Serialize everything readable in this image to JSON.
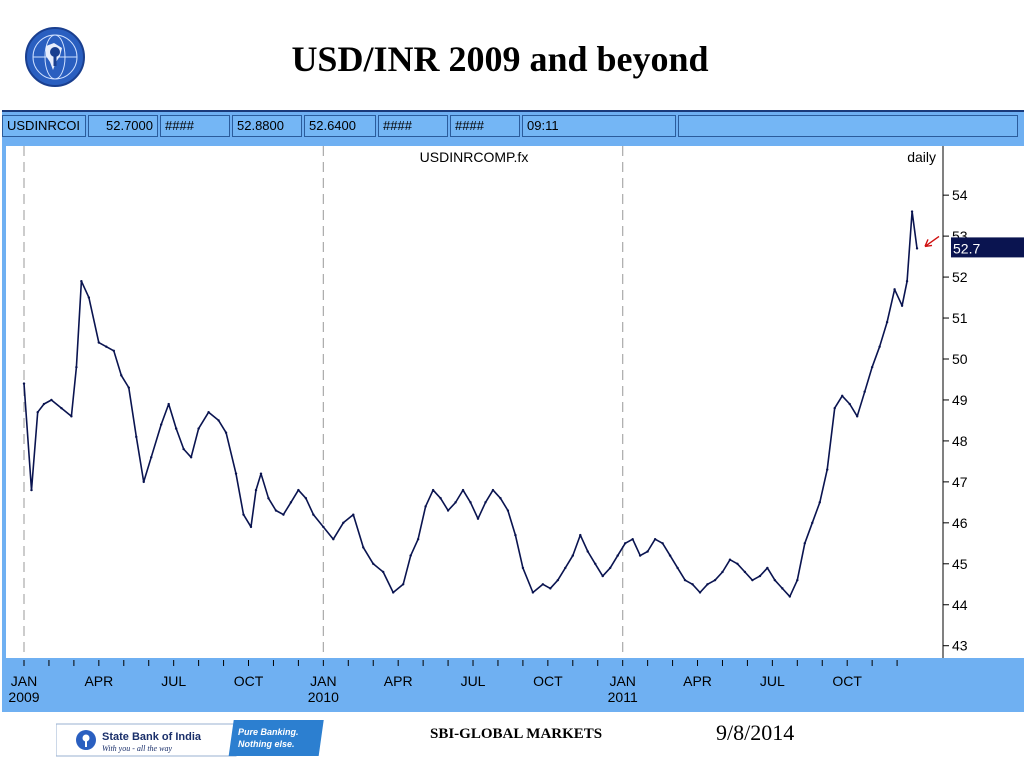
{
  "slide": {
    "title": "USD/INR 2009 and beyond",
    "footer_center": "SBI-GLOBAL MARKETS",
    "footer_date": "9/8/2014"
  },
  "quote_bar": {
    "cells": [
      "USDINRCOI",
      "52.7000",
      "####",
      "52.8800",
      "52.6400",
      "####",
      "####",
      "09:11",
      ""
    ]
  },
  "banner": {
    "bank_name": "State Bank of India",
    "tagline": "With you - all the way",
    "slogan_line1": "Pure Banking.",
    "slogan_line2": "Nothing else."
  },
  "colors": {
    "frame": "#6fb0f2",
    "series": "#0a1450",
    "last_price_box": "#0a1450",
    "arrow": "#d01010"
  },
  "chart_data": {
    "type": "line",
    "title": "USDINRCOMP.fx",
    "frequency_label": "daily",
    "last_value_label": "52.7",
    "ylim": [
      42.7,
      55.2
    ],
    "yticks": [
      43,
      44,
      45,
      46,
      47,
      48,
      49,
      50,
      51,
      52,
      53,
      54
    ],
    "xlim": [
      0,
      36.6
    ],
    "x_ticks": [
      {
        "pos": 0,
        "label": "JAN",
        "year": "2009"
      },
      {
        "pos": 3,
        "label": "APR",
        "year": ""
      },
      {
        "pos": 6,
        "label": "JUL",
        "year": ""
      },
      {
        "pos": 9,
        "label": "OCT",
        "year": ""
      },
      {
        "pos": 12,
        "label": "JAN",
        "year": "2010"
      },
      {
        "pos": 15,
        "label": "APR",
        "year": ""
      },
      {
        "pos": 18,
        "label": "JUL",
        "year": ""
      },
      {
        "pos": 21,
        "label": "OCT",
        "year": ""
      },
      {
        "pos": 24,
        "label": "JAN",
        "year": "2011"
      },
      {
        "pos": 27,
        "label": "APR",
        "year": ""
      },
      {
        "pos": 30,
        "label": "JUL",
        "year": ""
      },
      {
        "pos": 33,
        "label": "OCT",
        "year": ""
      }
    ],
    "vertical_dashed_at": [
      0,
      12,
      24
    ],
    "series": [
      {
        "x": [
          0,
          0.3,
          0.55,
          0.8,
          1.1,
          1.5,
          1.9,
          2.1,
          2.3,
          2.6,
          3.0,
          3.3,
          3.6,
          3.9,
          4.2,
          4.5,
          4.8,
          5.1,
          5.5,
          5.8,
          6.1,
          6.4,
          6.7,
          7.0,
          7.4,
          7.8,
          8.1,
          8.5,
          8.8,
          9.1,
          9.3,
          9.5,
          9.8,
          10.1,
          10.4,
          10.7,
          11.0,
          11.3,
          11.6,
          12.0,
          12.4,
          12.8,
          13.2,
          13.6,
          14.0,
          14.4,
          14.8,
          15.2,
          15.5,
          15.8,
          16.1,
          16.4,
          16.7,
          17.0,
          17.3,
          17.6,
          17.9,
          18.2,
          18.5,
          18.8,
          19.1,
          19.4,
          19.7,
          20.0,
          20.4,
          20.8,
          21.1,
          21.4,
          21.7,
          22.0,
          22.3,
          22.6,
          22.9,
          23.2,
          23.5,
          23.8,
          24.1,
          24.4,
          24.7,
          25.0,
          25.3,
          25.6,
          25.9,
          26.2,
          26.5,
          26.8,
          27.1,
          27.4,
          27.7,
          28.0,
          28.3,
          28.6,
          28.9,
          29.2,
          29.5,
          29.8,
          30.1,
          30.4,
          30.7,
          31.0,
          31.3,
          31.6,
          31.9,
          32.2,
          32.5,
          32.8,
          33.1,
          33.4,
          33.7,
          34.0,
          34.3,
          34.6,
          34.9,
          35.2,
          35.4,
          35.6,
          35.8
        ],
        "y": [
          49.4,
          46.8,
          48.7,
          48.9,
          49.0,
          48.8,
          48.6,
          49.8,
          51.9,
          51.5,
          50.4,
          50.3,
          50.2,
          49.6,
          49.3,
          48.1,
          47.0,
          47.6,
          48.4,
          48.9,
          48.3,
          47.8,
          47.6,
          48.3,
          48.7,
          48.5,
          48.2,
          47.2,
          46.2,
          45.9,
          46.8,
          47.2,
          46.6,
          46.3,
          46.2,
          46.5,
          46.8,
          46.6,
          46.2,
          45.9,
          45.6,
          46.0,
          46.2,
          45.4,
          45.0,
          44.8,
          44.3,
          44.5,
          45.2,
          45.6,
          46.4,
          46.8,
          46.6,
          46.3,
          46.5,
          46.8,
          46.5,
          46.1,
          46.5,
          46.8,
          46.6,
          46.3,
          45.7,
          44.9,
          44.3,
          44.5,
          44.4,
          44.6,
          44.9,
          45.2,
          45.7,
          45.3,
          45.0,
          44.7,
          44.9,
          45.2,
          45.5,
          45.6,
          45.2,
          45.3,
          45.6,
          45.5,
          45.2,
          44.9,
          44.6,
          44.5,
          44.3,
          44.5,
          44.6,
          44.8,
          45.1,
          45.0,
          44.8,
          44.6,
          44.7,
          44.9,
          44.6,
          44.4,
          44.2,
          44.6,
          45.5,
          46.0,
          46.5,
          47.3,
          48.8,
          49.1,
          48.9,
          48.6,
          49.2,
          49.8,
          50.3,
          50.9,
          51.7,
          51.3,
          51.9,
          53.6,
          52.7
        ]
      }
    ]
  }
}
